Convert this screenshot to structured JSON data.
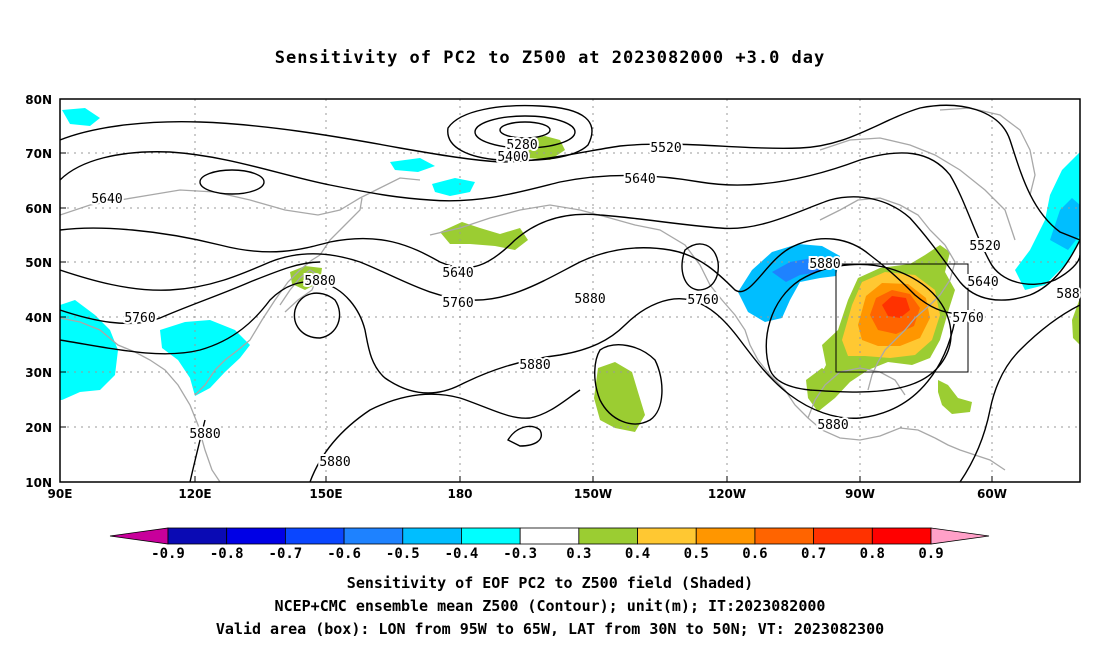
{
  "title": "Sensitivity of PC2 to Z500 at 2023082000 +3.0 day",
  "lat_labels": [
    "80N",
    "70N",
    "60N",
    "50N",
    "40N",
    "30N",
    "20N",
    "10N"
  ],
  "lon_labels": [
    "90E",
    "120E",
    "150E",
    "180",
    "150W",
    "120W",
    "90W",
    "60W"
  ],
  "contour_labels": [
    {
      "text": "5280"
    },
    {
      "text": "5400"
    },
    {
      "text": "5520"
    },
    {
      "text": "5640"
    },
    {
      "text": "5640"
    },
    {
      "text": "5640"
    },
    {
      "text": "5520"
    },
    {
      "text": "5640"
    },
    {
      "text": "5880"
    },
    {
      "text": "5760"
    },
    {
      "text": "5880"
    },
    {
      "text": "5760"
    },
    {
      "text": "5760"
    },
    {
      "text": "5760"
    },
    {
      "text": "5880"
    },
    {
      "text": "5880"
    },
    {
      "text": "5880"
    },
    {
      "text": "5880"
    },
    {
      "text": "5880"
    },
    {
      "text": "588"
    }
  ],
  "colorbar": {
    "labels": [
      "-0.9",
      "-0.8",
      "-0.7",
      "-0.6",
      "-0.5",
      "-0.4",
      "-0.3",
      "0.3",
      "0.4",
      "0.5",
      "0.6",
      "0.7",
      "0.8",
      "0.9"
    ],
    "colors": [
      "#0a0ab4",
      "#0000e6",
      "#0a46ff",
      "#1e82ff",
      "#00beff",
      "#00ffff",
      "#ffffff",
      "#9bcd32",
      "#ffc832",
      "#ff9600",
      "#ff6400",
      "#ff3200",
      "#ff0000"
    ],
    "low_end_color": "#c8009b",
    "high_end_color": "#ffa0c8"
  },
  "caption": {
    "line1": "Sensitivity of EOF PC2 to Z500 field (Shaded)",
    "line2": "NCEP+CMC ensemble mean Z500 (Contour); unit(m); IT:2023082000",
    "line3": "Valid area (box): LON from 95W to 65W, LAT from 30N to 50N; VT: 2023082300"
  }
}
